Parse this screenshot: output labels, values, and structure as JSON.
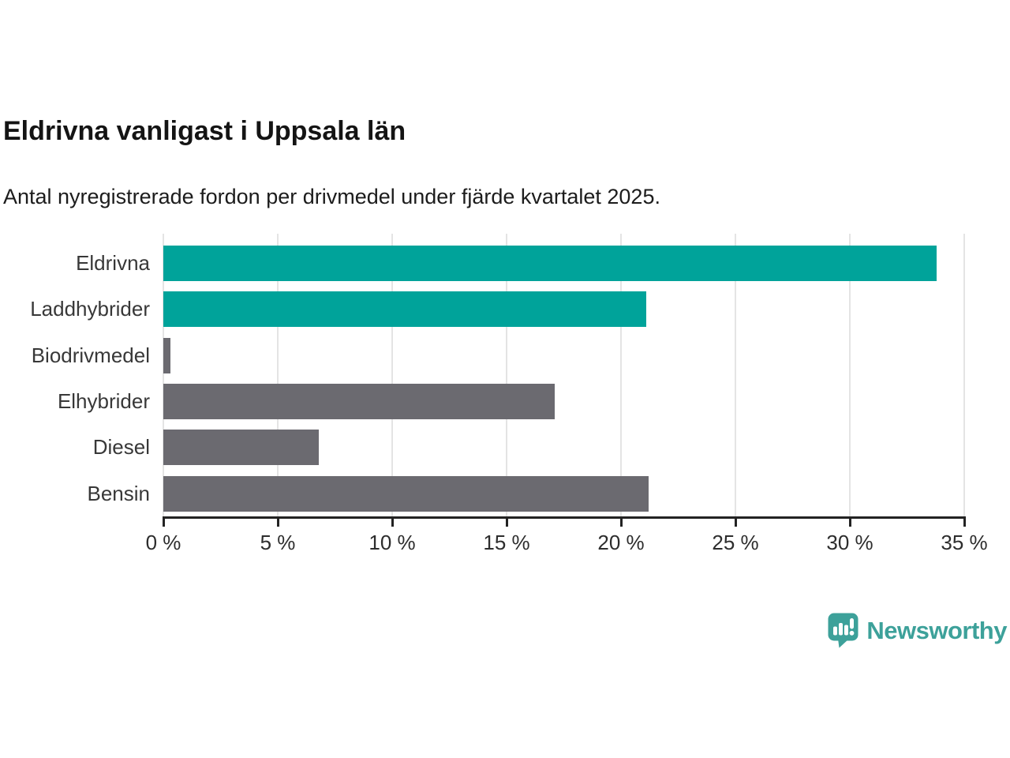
{
  "header": {
    "title": "Eldrivna vanligast i Uppsala län",
    "subtitle": "Antal nyregistrerade fordon per drivmedel under fjärde kvartalet 2025."
  },
  "chart_data": {
    "type": "bar",
    "orientation": "horizontal",
    "title": "Eldrivna vanligast i Uppsala län",
    "subtitle": "Antal nyregistrerade fordon per drivmedel under fjärde kvartalet 2025.",
    "categories": [
      "Eldrivna",
      "Laddhybrider",
      "Biodrivmedel",
      "Elhybrider",
      "Diesel",
      "Bensin"
    ],
    "values": [
      33.8,
      21.1,
      0.3,
      17.1,
      6.8,
      21.2
    ],
    "unit": "%",
    "bar_colors": [
      "#00a39a",
      "#00a39a",
      "#6b6a70",
      "#6b6a70",
      "#6b6a70",
      "#6b6a70"
    ],
    "xlabel": "",
    "ylabel": "",
    "xlim": [
      0,
      35
    ],
    "x_ticks": [
      0,
      5,
      10,
      15,
      20,
      25,
      30,
      35
    ],
    "x_tick_labels": [
      "0 %",
      "5 %",
      "10 %",
      "15 %",
      "20 %",
      "25 %",
      "30 %",
      "35 %"
    ],
    "grid": true,
    "legend": false
  },
  "colors": {
    "teal": "#00a39a",
    "gray": "#6b6a70",
    "grid": "#e4e4e4",
    "axis": "#232323",
    "logo_teal": "#3da19a"
  },
  "branding": {
    "logo_text": "Newsworthy",
    "logo_icon": "newsworthy-speech-bubble-bar-chart-icon"
  }
}
